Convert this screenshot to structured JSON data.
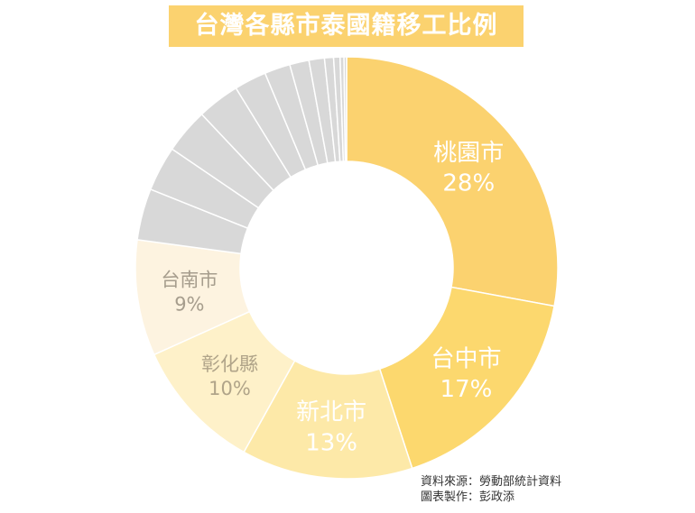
{
  "chart_data": {
    "type": "pie",
    "subtype": "donut",
    "title": "台灣各縣市泰國籍移工比例",
    "slices": [
      {
        "label": "桃園市",
        "value_label": "28%",
        "value": 28.3,
        "color": "#fbd26f",
        "text_color": "#ffffff"
      },
      {
        "label": "台中市",
        "value_label": "17%",
        "value": 17.3,
        "color": "#fcd86e",
        "text_color": "#ffffff"
      },
      {
        "label": "新北市",
        "value_label": "13%",
        "value": 13.3,
        "color": "#fde9a8",
        "text_color": "#ffffff"
      },
      {
        "label": "彰化縣",
        "value_label": "10%",
        "value": 10.3,
        "color": "#fef1c9",
        "text_color": "#b0a489"
      },
      {
        "label": "台南市",
        "value_label": "9%",
        "value": 9.0,
        "color": "#fdf3e0",
        "text_color": "#a69d8d"
      },
      {
        "label": "",
        "value_label": "",
        "value": 4.0,
        "color": "#d8d8d8",
        "text_color": ""
      },
      {
        "label": "",
        "value_label": "",
        "value": 3.5,
        "color": "#d8d8d8",
        "text_color": ""
      },
      {
        "label": "",
        "value_label": "",
        "value": 3.5,
        "color": "#d8d8d8",
        "text_color": ""
      },
      {
        "label": "",
        "value_label": "",
        "value": 3.3,
        "color": "#d8d8d8",
        "text_color": ""
      },
      {
        "label": "",
        "value_label": "",
        "value": 2.5,
        "color": "#d8d8d8",
        "text_color": ""
      },
      {
        "label": "",
        "value_label": "",
        "value": 2.0,
        "color": "#d8d8d8",
        "text_color": ""
      },
      {
        "label": "",
        "value_label": "",
        "value": 1.5,
        "color": "#d8d8d8",
        "text_color": ""
      },
      {
        "label": "",
        "value_label": "",
        "value": 1.2,
        "color": "#d8d8d8",
        "text_color": ""
      },
      {
        "label": "",
        "value_label": "",
        "value": 0.7,
        "color": "#d8d8d8",
        "text_color": ""
      },
      {
        "label": "",
        "value_label": "",
        "value": 0.5,
        "color": "#d8d8d8",
        "text_color": ""
      },
      {
        "label": "",
        "value_label": "",
        "value": 0.3,
        "color": "#d8d8d8",
        "text_color": ""
      },
      {
        "label": "",
        "value_label": "",
        "value": 0.2,
        "color": "#d8d8d8",
        "text_color": ""
      }
    ],
    "legend": "none"
  },
  "source": {
    "line1": "資料來源：勞動部統計資料",
    "line2": "圖表製作：彭政添"
  }
}
